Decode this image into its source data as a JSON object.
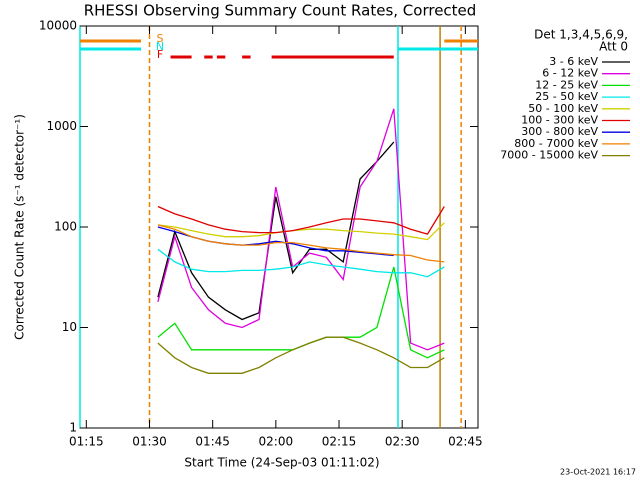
{
  "chart_data": {
    "type": "line",
    "title": "RHESSI Observing Summary Count Rates, Corrected",
    "x_label": "Start Time (24-Sep-03 01:11:02)",
    "y_label": "Corrected Count Rate (s⁻¹ detector⁻¹)",
    "legend_title": [
      "Det 1,3,4,5,6,9,",
      "Att 0"
    ],
    "footer": "23-Oct-2021 16:17",
    "ylog": true,
    "xlim": [
      "01:13:30",
      "02:48:00"
    ],
    "ylim": [
      1,
      10000
    ],
    "xticks": [
      "01:15",
      "01:30",
      "01:45",
      "02:00",
      "02:15",
      "02:30",
      "02:45"
    ],
    "yticks": [
      1,
      10,
      100,
      1000,
      10000
    ],
    "x": [
      "01:32",
      "01:36",
      "01:40",
      "01:44",
      "01:48",
      "01:52",
      "01:56",
      "02:00",
      "02:04",
      "02:08",
      "02:12",
      "02:16",
      "02:20",
      "02:24",
      "02:28",
      "02:32",
      "02:36",
      "02:40"
    ],
    "series": [
      {
        "name": "3 - 6 keV",
        "color": "#000000",
        "values": [
          20,
          90,
          35,
          20,
          15,
          12,
          14,
          200,
          35,
          60,
          60,
          45,
          300,
          450,
          700,
          null,
          null,
          null
        ]
      },
      {
        "name": "6 - 12 keV",
        "color": "#e000e0",
        "values": [
          18,
          80,
          25,
          15,
          11,
          10,
          12,
          250,
          40,
          55,
          50,
          30,
          250,
          450,
          1500,
          7,
          6,
          7
        ]
      },
      {
        "name": "12 - 25 keV",
        "color": "#00e000",
        "values": [
          8,
          11,
          6,
          6,
          6,
          6,
          6,
          6,
          6,
          7,
          8,
          8,
          8,
          10,
          40,
          6,
          5,
          6
        ]
      },
      {
        "name": "25 - 50 keV",
        "color": "#00e8e8",
        "values": [
          60,
          45,
          38,
          36,
          36,
          37,
          37,
          38,
          40,
          45,
          42,
          40,
          38,
          36,
          35,
          35,
          32,
          40
        ]
      },
      {
        "name": "50 - 100 keV",
        "color": "#d0d000",
        "values": [
          105,
          100,
          92,
          85,
          80,
          80,
          82,
          88,
          92,
          95,
          95,
          92,
          90,
          87,
          85,
          80,
          75,
          110
        ]
      },
      {
        "name": "100 - 300 keV",
        "color": "#e00000",
        "values": [
          160,
          135,
          120,
          105,
          95,
          90,
          88,
          88,
          92,
          100,
          110,
          120,
          120,
          115,
          110,
          95,
          85,
          160
        ]
      },
      {
        "name": "300 - 800 keV",
        "color": "#0000e0",
        "values": [
          100,
          90,
          80,
          72,
          68,
          66,
          68,
          72,
          68,
          62,
          58,
          58,
          56,
          54,
          52,
          null,
          null,
          null
        ]
      },
      {
        "name": "800 - 7000 keV",
        "color": "#f08000",
        "values": [
          105,
          95,
          80,
          72,
          68,
          66,
          66,
          70,
          70,
          66,
          62,
          60,
          57,
          55,
          53,
          52,
          47,
          45
        ]
      },
      {
        "name": "7000 - 15000 keV",
        "color": "#808000",
        "values": [
          7,
          5,
          4,
          3.5,
          3.5,
          3.5,
          4,
          5,
          6,
          7,
          8,
          8,
          7,
          6,
          5,
          4,
          4,
          5
        ]
      }
    ],
    "flags": [
      {
        "label": "S",
        "color": "#f08000",
        "segments": [
          [
            "01:13:30",
            "01:28"
          ],
          [
            "02:40",
            "02:48"
          ]
        ]
      },
      {
        "label": "N",
        "color": "#00e8e8",
        "segments": [
          [
            "01:13:30",
            "01:28"
          ],
          [
            "02:29",
            "02:48"
          ]
        ]
      },
      {
        "label": "F",
        "color": "#e00000",
        "segments": [
          [
            "01:35",
            "01:40"
          ],
          [
            "01:43",
            "01:45"
          ],
          [
            "01:46",
            "01:48"
          ],
          [
            "01:52",
            "01:54"
          ],
          [
            "01:59",
            "02:28"
          ]
        ]
      }
    ],
    "vlines": [
      {
        "x": "01:13:30",
        "color": "#00e8e8",
        "dashed": false
      },
      {
        "x": "01:30",
        "color": "#f08000",
        "dashed": true
      },
      {
        "x": "02:29",
        "color": "#00e8e8",
        "dashed": false
      },
      {
        "x": "02:39",
        "color": "#c08000",
        "dashed": false
      },
      {
        "x": "02:44",
        "color": "#f08000",
        "dashed": true
      }
    ]
  }
}
